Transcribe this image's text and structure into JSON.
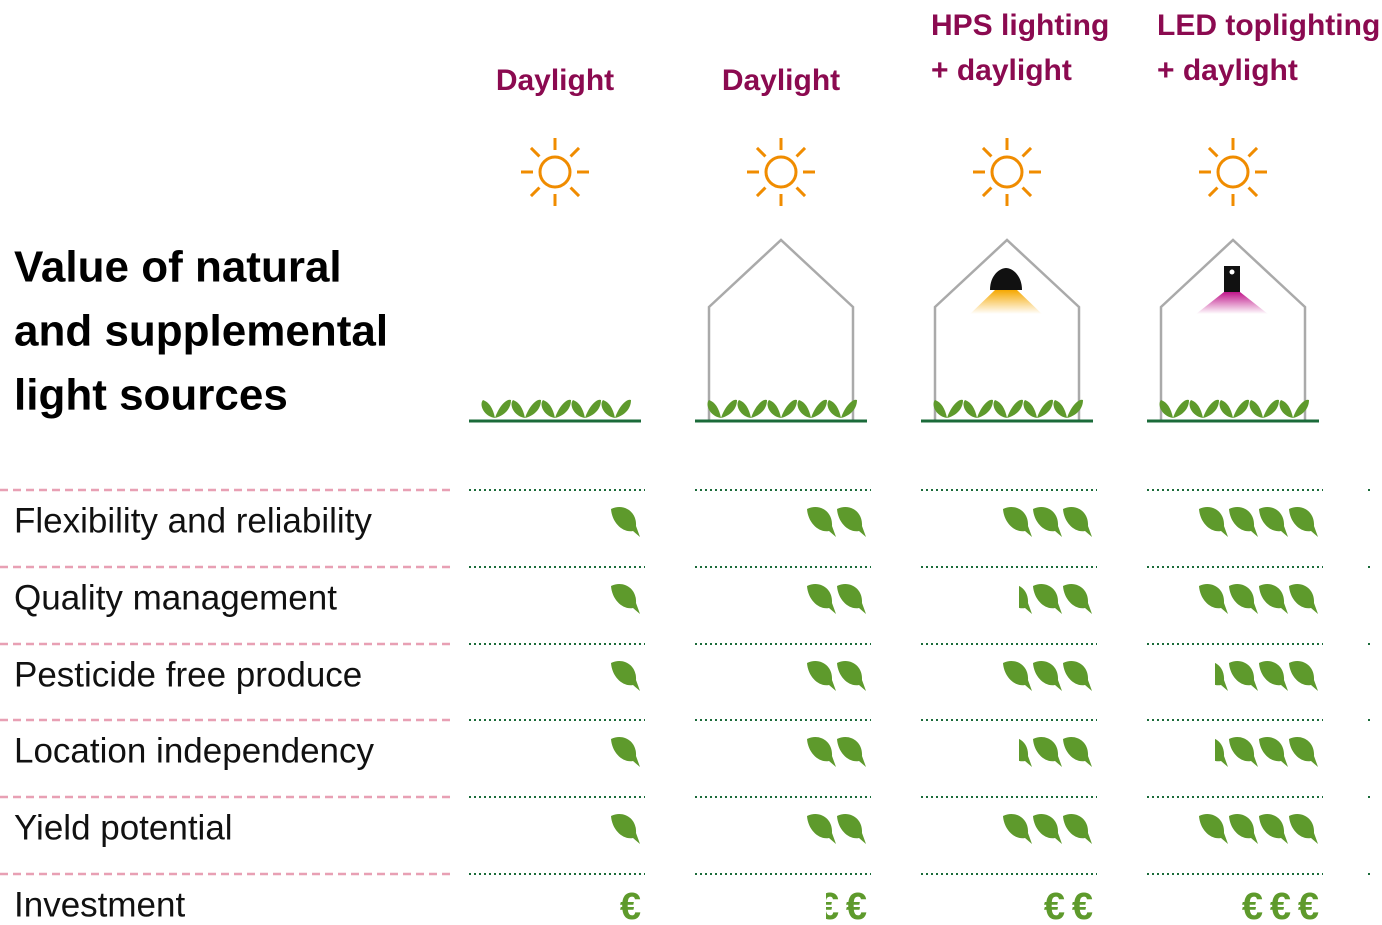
{
  "title": [
    "Value of natural",
    "and supplemental",
    "light sources"
  ],
  "columns": [
    [
      "Daylight"
    ],
    [
      "Daylight"
    ],
    [
      "HPS lighting",
      "+ daylight"
    ],
    [
      "LED toplighting",
      "+ daylight"
    ]
  ],
  "currency_symbol": "€",
  "rows": [
    {
      "label": "Flexibility and reliability",
      "values": [
        1,
        2,
        3,
        4
      ]
    },
    {
      "label": "Quality management",
      "values": [
        1,
        2,
        2.5,
        4
      ]
    },
    {
      "label": "Pesticide free produce",
      "values": [
        1,
        2,
        3,
        3.5
      ]
    },
    {
      "label": "Location independency",
      "values": [
        1,
        2,
        2.5,
        3.5
      ]
    },
    {
      "label": "Yield potential",
      "values": [
        1,
        2,
        3,
        4
      ]
    },
    {
      "label": "Investment",
      "values": [
        1,
        1.5,
        2,
        3
      ]
    }
  ]
}
